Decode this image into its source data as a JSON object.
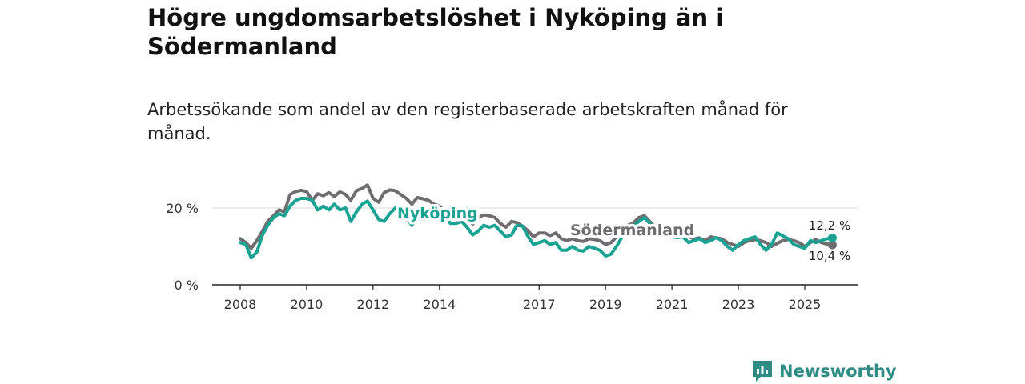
{
  "title": "Högre ungdomsarbetslöshet i Nyköping än i Södermanland",
  "subtitle": "Arbetssökande som andel av den registerbaserade arbetskraften månad för månad.",
  "brand": "Newsworthy",
  "colors": {
    "nykoping": "#1aa393",
    "sodermanland": "#6f6d70",
    "grid": "#d9d9d9",
    "axis": "#222222",
    "brand": "#2e8c85"
  },
  "icons": {
    "brand_logo": "bar-chart-speech-bubble-icon"
  },
  "chart_data": {
    "type": "line",
    "title": "Högre ungdomsarbetslöshet i Nyköping än i Södermanland",
    "xlabel": "",
    "ylabel": "",
    "xlim": [
      2007.9,
      2026.4
    ],
    "ylim": [
      0,
      25
    ],
    "yticks": [
      0,
      20
    ],
    "ytick_labels": [
      "0 %",
      "20 %"
    ],
    "xticks": [
      2008,
      2010,
      2012,
      2014,
      2017,
      2019,
      2021,
      2023,
      2025
    ],
    "xtick_labels": [
      "2008",
      "2010",
      "2012",
      "2014",
      "2017",
      "2019",
      "2021",
      "2023",
      "2025"
    ],
    "series": [
      {
        "name": "Södermanland",
        "label": "Södermanland",
        "end_label": "10,4 %",
        "x": [
          2008.0,
          2008.17,
          2008.33,
          2008.5,
          2008.67,
          2008.83,
          2009.0,
          2009.17,
          2009.33,
          2009.5,
          2009.67,
          2009.83,
          2010.0,
          2010.17,
          2010.33,
          2010.5,
          2010.67,
          2010.83,
          2011.0,
          2011.17,
          2011.33,
          2011.5,
          2011.67,
          2011.83,
          2012.0,
          2012.17,
          2012.33,
          2012.5,
          2012.67,
          2012.83,
          2013.0,
          2013.17,
          2013.33,
          2013.5,
          2013.67,
          2013.83,
          2014.0,
          2014.17,
          2014.33,
          2014.5,
          2014.67,
          2014.83,
          2015.0,
          2015.17,
          2015.33,
          2015.5,
          2015.67,
          2015.83,
          2016.0,
          2016.17,
          2016.33,
          2016.5,
          2016.67,
          2016.83,
          2017.0,
          2017.17,
          2017.33,
          2017.5,
          2017.67,
          2017.83,
          2018.0,
          2018.17,
          2018.33,
          2018.5,
          2018.67,
          2018.83,
          2019.0,
          2019.17,
          2019.33,
          2019.5,
          2019.67,
          2019.83,
          2020.0,
          2020.17,
          2020.33,
          2020.5,
          2020.67,
          2020.83,
          2021.0,
          2021.17,
          2021.33,
          2021.5,
          2021.67,
          2021.83,
          2022.0,
          2022.17,
          2022.33,
          2022.5,
          2022.67,
          2022.83,
          2023.0,
          2023.17,
          2023.33,
          2023.5,
          2023.67,
          2023.83,
          2024.0,
          2024.17,
          2024.33,
          2024.5,
          2024.67,
          2024.83,
          2025.0,
          2025.17,
          2025.33,
          2025.5,
          2025.67,
          2025.83
        ],
        "values": [
          12.0,
          11.0,
          9.5,
          11.5,
          14.0,
          16.5,
          18.0,
          19.5,
          19.0,
          23.5,
          24.3,
          24.6,
          24.3,
          22.0,
          23.7,
          23.2,
          24.0,
          23.0,
          24.2,
          23.5,
          22.0,
          24.5,
          25.1,
          26.0,
          22.5,
          21.5,
          24.0,
          24.7,
          24.5,
          23.5,
          22.5,
          21.0,
          22.7,
          22.4,
          22.0,
          21.0,
          20.5,
          19.0,
          17.5,
          17.5,
          18.0,
          17.5,
          15.8,
          17.5,
          18.2,
          18.0,
          17.5,
          16.0,
          15.0,
          16.5,
          16.2,
          15.3,
          14.0,
          12.5,
          13.5,
          13.5,
          12.8,
          13.5,
          12.0,
          11.5,
          12.0,
          11.5,
          11.3,
          12.0,
          11.8,
          11.5,
          10.5,
          11.0,
          12.5,
          14.0,
          15.5,
          16.0,
          17.5,
          18.0,
          16.5,
          15.0,
          14.5,
          13.8,
          13.2,
          13.0,
          13.5,
          12.5,
          12.0,
          12.2,
          11.5,
          12.5,
          12.2,
          12.0,
          11.0,
          10.5,
          10.0,
          11.0,
          11.5,
          11.8,
          11.5,
          11.0,
          10.0,
          10.8,
          11.5,
          11.8,
          11.5,
          11.0,
          10.0,
          11.0,
          11.8,
          11.0,
          10.6,
          10.4
        ]
      },
      {
        "name": "Nyköping",
        "label": "Nyköping",
        "end_label": "12,2 %",
        "x": [
          2008.0,
          2008.17,
          2008.33,
          2008.5,
          2008.67,
          2008.83,
          2009.0,
          2009.17,
          2009.33,
          2009.5,
          2009.67,
          2009.83,
          2010.0,
          2010.17,
          2010.33,
          2010.5,
          2010.67,
          2010.83,
          2011.0,
          2011.17,
          2011.33,
          2011.5,
          2011.67,
          2011.83,
          2012.0,
          2012.17,
          2012.33,
          2012.5,
          2012.67,
          2012.83,
          2013.0,
          2013.17,
          2013.33,
          2013.5,
          2013.67,
          2013.83,
          2014.0,
          2014.17,
          2014.33,
          2014.5,
          2014.67,
          2014.83,
          2015.0,
          2015.17,
          2015.33,
          2015.5,
          2015.67,
          2015.83,
          2016.0,
          2016.17,
          2016.33,
          2016.5,
          2016.67,
          2016.83,
          2017.0,
          2017.17,
          2017.33,
          2017.5,
          2017.67,
          2017.83,
          2018.0,
          2018.17,
          2018.33,
          2018.5,
          2018.67,
          2018.83,
          2019.0,
          2019.17,
          2019.33,
          2019.5,
          2019.67,
          2019.83,
          2020.0,
          2020.17,
          2020.33,
          2020.5,
          2020.67,
          2020.83,
          2021.0,
          2021.17,
          2021.33,
          2021.5,
          2021.67,
          2021.83,
          2022.0,
          2022.17,
          2022.33,
          2022.5,
          2022.67,
          2022.83,
          2023.0,
          2023.17,
          2023.33,
          2023.5,
          2023.67,
          2023.83,
          2024.0,
          2024.17,
          2024.33,
          2024.5,
          2024.67,
          2024.83,
          2025.0,
          2025.17,
          2025.33,
          2025.5,
          2025.67,
          2025.83
        ],
        "values": [
          11.0,
          10.5,
          7.0,
          8.5,
          13.0,
          15.5,
          17.5,
          18.5,
          18.0,
          20.5,
          22.0,
          22.5,
          22.5,
          22.0,
          19.5,
          20.5,
          19.5,
          21.0,
          19.5,
          20.0,
          16.5,
          19.0,
          21.0,
          21.8,
          19.5,
          17.0,
          16.5,
          18.5,
          20.0,
          19.0,
          17.5,
          15.5,
          19.0,
          17.5,
          18.0,
          17.5,
          18.0,
          18.0,
          16.0,
          16.0,
          16.5,
          15.0,
          13.0,
          14.0,
          15.5,
          15.0,
          15.5,
          14.0,
          12.5,
          13.0,
          15.5,
          15.3,
          12.5,
          10.5,
          11.0,
          11.5,
          10.5,
          11.0,
          9.0,
          9.0,
          10.0,
          9.0,
          8.8,
          10.0,
          9.5,
          9.0,
          7.5,
          8.0,
          10.0,
          12.5,
          14.5,
          15.0,
          16.5,
          17.5,
          16.0,
          14.5,
          13.5,
          13.0,
          12.5,
          12.3,
          12.5,
          11.0,
          11.5,
          12.0,
          11.0,
          11.5,
          12.3,
          11.5,
          10.0,
          9.0,
          10.5,
          11.5,
          12.0,
          12.5,
          10.5,
          9.0,
          10.5,
          13.5,
          12.8,
          12.0,
          10.5,
          10.0,
          9.5,
          11.5,
          11.0,
          11.5,
          12.0,
          12.2
        ]
      }
    ]
  }
}
